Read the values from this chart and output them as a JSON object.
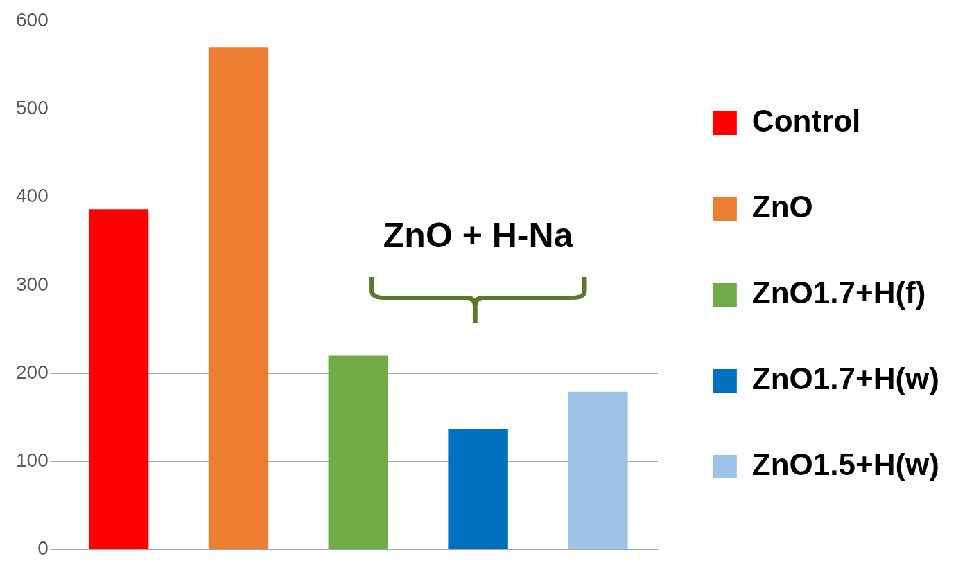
{
  "chart_data": {
    "type": "bar",
    "categories": [
      null,
      null,
      null,
      null,
      null
    ],
    "series": [
      {
        "name": "Control",
        "color": "#ff0000",
        "values": [
          386,
          null,
          null,
          null,
          null
        ]
      },
      {
        "name": "ZnO",
        "color": "#ed7d31",
        "values": [
          null,
          570,
          null,
          null,
          null
        ]
      },
      {
        "name": "ZnO1.7+H(f)",
        "color": "#70ad47",
        "values": [
          null,
          null,
          220,
          null,
          null
        ]
      },
      {
        "name": "ZnO1.7+H(w)",
        "color": "#0070c0",
        "values": [
          null,
          null,
          null,
          137,
          null
        ]
      },
      {
        "name": "ZnO1.5+H(w)",
        "color": "#9dc3e6",
        "values": [
          null,
          null,
          null,
          null,
          179
        ]
      }
    ],
    "ylim": [
      0,
      600
    ],
    "yticks": [
      0,
      100,
      200,
      300,
      400,
      500,
      600
    ],
    "grid": "y",
    "legend": "right",
    "annotations": [
      "ZnO + H-Na"
    ]
  }
}
